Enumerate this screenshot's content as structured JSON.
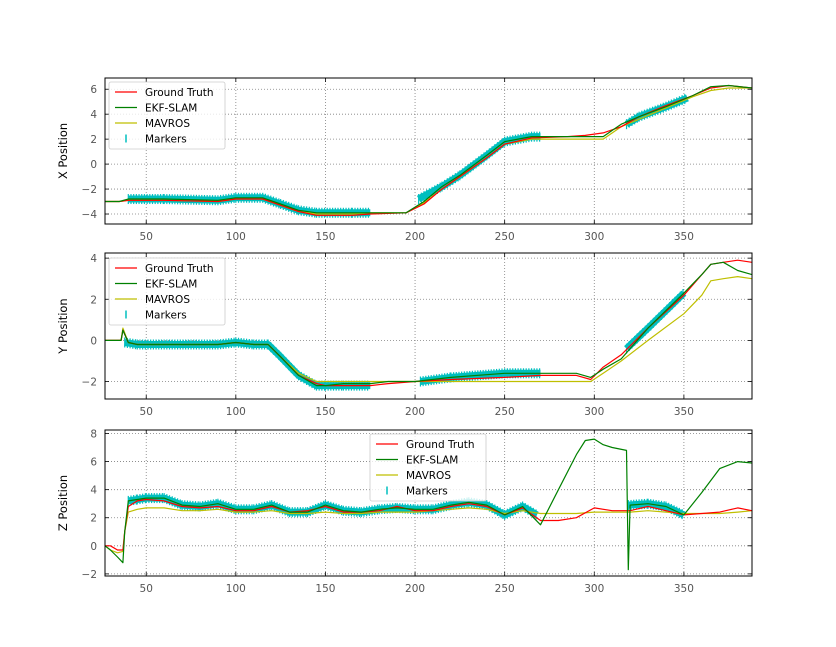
{
  "colors": {
    "ground_truth": "#ff0000",
    "ekf_slam": "#008000",
    "mavros": "#bfbf00",
    "markers": "#00bfbf",
    "grid": "#7f7f7f",
    "axis": "#000000"
  },
  "legend_labels": {
    "ground_truth": "Ground Truth",
    "ekf_slam": "EKF-SLAM",
    "mavros": "MAVROS",
    "markers": "Markers"
  },
  "chart_data": [
    {
      "type": "line",
      "title": "",
      "xlabel": "",
      "ylabel": "X Position",
      "xlim": [
        27,
        388
      ],
      "ylim": [
        -4.8,
        6.9
      ],
      "xticks": [
        "50",
        "100",
        "150",
        "200",
        "250",
        "300",
        "350"
      ],
      "yticks": [
        "−4",
        "−2",
        "0",
        "2",
        "4",
        "6"
      ],
      "grid": true,
      "legend_position": "upper-left",
      "series": [
        {
          "name": "Ground Truth",
          "x": [
            27,
            35,
            40,
            60,
            90,
            100,
            115,
            125,
            135,
            145,
            165,
            175,
            195,
            205,
            215,
            225,
            240,
            250,
            265,
            285,
            295,
            305,
            315,
            325,
            340,
            355,
            365,
            375,
            388
          ],
          "y": [
            -3,
            -3,
            -2.9,
            -2.9,
            -3,
            -2.8,
            -2.8,
            -3.3,
            -3.8,
            -4.1,
            -4.1,
            -4,
            -3.9,
            -3.2,
            -2,
            -1,
            0.5,
            1.6,
            2.1,
            2.2,
            2.3,
            2.5,
            3,
            3.8,
            4.7,
            5.5,
            6.1,
            6.3,
            6.1
          ]
        },
        {
          "name": "EKF-SLAM",
          "x": [
            27,
            35,
            40,
            60,
            90,
            100,
            115,
            125,
            135,
            145,
            165,
            175,
            195,
            205,
            215,
            225,
            240,
            250,
            265,
            285,
            295,
            305,
            315,
            325,
            340,
            355,
            365,
            375,
            388
          ],
          "y": [
            -3,
            -3,
            -2.8,
            -2.8,
            -2.9,
            -2.7,
            -2.7,
            -3.2,
            -3.7,
            -3.9,
            -3.9,
            -3.9,
            -3.9,
            -3,
            -1.8,
            -0.9,
            0.7,
            1.8,
            2.2,
            2.2,
            2.2,
            2.2,
            3.2,
            3.8,
            4.6,
            5.5,
            6.2,
            6.3,
            6.1
          ]
        },
        {
          "name": "MAVROS",
          "x": [
            27,
            35,
            40,
            60,
            90,
            100,
            115,
            125,
            135,
            145,
            165,
            175,
            195,
            205,
            215,
            225,
            240,
            250,
            265,
            285,
            295,
            305,
            315,
            325,
            340,
            355,
            365,
            375,
            388
          ],
          "y": [
            -3,
            -3,
            -2.9,
            -2.9,
            -3,
            -2.8,
            -2.8,
            -3.3,
            -3.8,
            -4,
            -4,
            -3.9,
            -3.9,
            -3.1,
            -2,
            -1,
            0.5,
            1.6,
            2,
            2,
            2,
            2,
            3,
            3.6,
            4.5,
            5.4,
            5.9,
            6.1,
            6.1
          ]
        },
        {
          "name": "Markers",
          "segments": [
            {
              "x": [
                40,
                60,
                90,
                100,
                115,
                125,
                135,
                145,
                165,
                175
              ],
              "y": [
                -2.8,
                -2.8,
                -2.9,
                -2.7,
                -2.7,
                -3.2,
                -3.7,
                -3.9,
                -3.9,
                -3.9
              ]
            },
            {
              "x": [
                202,
                215,
                225,
                240,
                250,
                265,
                270
              ],
              "y": [
                -2.8,
                -1.8,
                -0.9,
                0.7,
                1.8,
                2.2,
                2.2
              ]
            },
            {
              "x": [
                318,
                325,
                340,
                352
              ],
              "y": [
                3.2,
                3.8,
                4.6,
                5.3
              ]
            }
          ]
        }
      ]
    },
    {
      "type": "line",
      "title": "",
      "xlabel": "",
      "ylabel": "Y Position",
      "xlim": [
        27,
        388
      ],
      "ylim": [
        -2.85,
        4.25
      ],
      "xticks": [
        "50",
        "100",
        "150",
        "200",
        "250",
        "300",
        "350"
      ],
      "yticks": [
        "−2",
        "0",
        "2",
        "4"
      ],
      "grid": true,
      "legend_position": "upper-left",
      "series": [
        {
          "name": "Ground Truth",
          "x": [
            27,
            36,
            37,
            40,
            45,
            60,
            90,
            100,
            110,
            118,
            125,
            135,
            145,
            150,
            160,
            175,
            185,
            200,
            220,
            250,
            270,
            290,
            298,
            305,
            315,
            330,
            350,
            360,
            365,
            372,
            380,
            388
          ],
          "y": [
            0,
            0,
            0.5,
            -0.1,
            -0.2,
            -0.2,
            -0.2,
            -0.1,
            -0.2,
            -0.2,
            -0.8,
            -1.7,
            -2.1,
            -2.2,
            -2.2,
            -2.2,
            -2.1,
            -2,
            -1.9,
            -1.8,
            -1.7,
            -1.7,
            -1.9,
            -1.3,
            -0.7,
            0.6,
            2.2,
            3.2,
            3.7,
            3.8,
            3.9,
            3.8
          ]
        },
        {
          "name": "EKF-SLAM",
          "x": [
            27,
            36,
            37,
            40,
            45,
            60,
            90,
            100,
            110,
            118,
            125,
            135,
            145,
            150,
            160,
            175,
            185,
            200,
            220,
            250,
            270,
            290,
            298,
            305,
            315,
            330,
            350,
            360,
            365,
            372,
            380,
            388
          ],
          "y": [
            0,
            0,
            0.5,
            -0.1,
            -0.2,
            -0.2,
            -0.2,
            -0.1,
            -0.2,
            -0.2,
            -0.8,
            -1.7,
            -2.2,
            -2.2,
            -2.1,
            -2.1,
            -2,
            -2,
            -1.8,
            -1.6,
            -1.6,
            -1.6,
            -1.8,
            -1.4,
            -0.9,
            0.6,
            2.3,
            3.2,
            3.7,
            3.8,
            3.4,
            3.2
          ]
        },
        {
          "name": "MAVROS",
          "x": [
            27,
            36,
            37,
            40,
            45,
            60,
            90,
            100,
            110,
            118,
            125,
            135,
            145,
            150,
            160,
            175,
            185,
            200,
            220,
            250,
            270,
            290,
            298,
            305,
            315,
            330,
            350,
            360,
            365,
            372,
            380,
            388
          ],
          "y": [
            0,
            0,
            0.6,
            -0.1,
            -0.2,
            -0.2,
            -0.2,
            -0.1,
            -0.2,
            -0.2,
            -0.8,
            -1.6,
            -2,
            -2,
            -2,
            -2,
            -2,
            -2,
            -2,
            -2,
            -2,
            -2,
            -2,
            -1.6,
            -1,
            0,
            1.3,
            2.2,
            2.9,
            3,
            3.1,
            3
          ]
        },
        {
          "name": "Markers",
          "segments": [
            {
              "x": [
                38,
                45,
                60,
                90,
                100,
                110,
                118,
                125,
                135,
                145,
                150,
                160,
                175
              ],
              "y": [
                -0.1,
                -0.2,
                -0.2,
                -0.2,
                -0.1,
                -0.2,
                -0.2,
                -0.8,
                -1.7,
                -2.2,
                -2.2,
                -2.2,
                -2.2
              ]
            },
            {
              "x": [
                203,
                220,
                250,
                270
              ],
              "y": [
                -2,
                -1.8,
                -1.6,
                -1.6
              ]
            },
            {
              "x": [
                318,
                330,
                350
              ],
              "y": [
                -0.4,
                0.6,
                2.3
              ]
            }
          ]
        }
      ]
    },
    {
      "type": "line",
      "title": "",
      "xlabel": "",
      "ylabel": "Z Position",
      "xlim": [
        27,
        388
      ],
      "ylim": [
        -2.15,
        8.25
      ],
      "xticks": [
        "50",
        "100",
        "150",
        "200",
        "250",
        "300",
        "350"
      ],
      "yticks": [
        "−2",
        "0",
        "2",
        "4",
        "6",
        "8"
      ],
      "grid": true,
      "legend_position": "upper-center",
      "series": [
        {
          "name": "Ground Truth",
          "x": [
            27,
            30,
            34,
            37,
            38,
            40,
            45,
            50,
            60,
            70,
            80,
            90,
            100,
            110,
            120,
            130,
            140,
            150,
            160,
            170,
            180,
            190,
            200,
            210,
            220,
            230,
            240,
            250,
            260,
            270,
            280,
            290,
            300,
            310,
            320,
            330,
            340,
            350,
            360,
            370,
            380,
            388
          ],
          "y": [
            0,
            0,
            -0.3,
            -0.3,
            1,
            2.8,
            3.2,
            3.3,
            3.2,
            2.8,
            2.7,
            2.8,
            2.5,
            2.5,
            2.8,
            2.4,
            2.5,
            2.8,
            2.4,
            2.4,
            2.5,
            2.8,
            2.5,
            2.5,
            2.8,
            3,
            2.8,
            2.2,
            2.7,
            1.8,
            1.8,
            2,
            2.7,
            2.5,
            2.5,
            2.8,
            2.5,
            2.2,
            2.3,
            2.4,
            2.7,
            2.5
          ]
        },
        {
          "name": "EKF-SLAM",
          "x": [
            27,
            30,
            34,
            37,
            38,
            40,
            45,
            50,
            60,
            70,
            80,
            90,
            100,
            110,
            120,
            130,
            140,
            150,
            160,
            170,
            180,
            190,
            200,
            210,
            220,
            230,
            240,
            250,
            260,
            270,
            280,
            290,
            295,
            300,
            305,
            310,
            318,
            319,
            320,
            330,
            340,
            350,
            360,
            370,
            380,
            388
          ],
          "y": [
            0,
            -0.3,
            -0.8,
            -1.2,
            1,
            3.2,
            3.3,
            3.4,
            3.4,
            2.9,
            2.8,
            3,
            2.6,
            2.6,
            2.9,
            2.4,
            2.4,
            2.9,
            2.5,
            2.4,
            2.6,
            2.7,
            2.6,
            2.6,
            2.9,
            3.1,
            2.9,
            2.2,
            2.8,
            1.5,
            4,
            6.5,
            7.5,
            7.6,
            7.2,
            7,
            6.8,
            -1.7,
            2.9,
            3,
            2.8,
            2.2,
            3.8,
            5.5,
            6,
            5.9
          ]
        },
        {
          "name": "MAVROS",
          "x": [
            27,
            30,
            34,
            37,
            38,
            40,
            45,
            50,
            60,
            70,
            80,
            90,
            100,
            110,
            120,
            130,
            140,
            150,
            160,
            170,
            180,
            190,
            200,
            210,
            220,
            230,
            240,
            250,
            260,
            270,
            280,
            290,
            300,
            310,
            320,
            330,
            340,
            350,
            360,
            370,
            380,
            388
          ],
          "y": [
            0,
            -0.3,
            -0.5,
            -0.4,
            1,
            2.4,
            2.6,
            2.7,
            2.7,
            2.5,
            2.5,
            2.6,
            2.4,
            2.4,
            2.5,
            2.3,
            2.3,
            2.4,
            2.3,
            2.3,
            2.4,
            2.4,
            2.4,
            2.5,
            2.6,
            2.7,
            2.6,
            2.3,
            2.5,
            2.3,
            2.3,
            2.3,
            2.4,
            2.4,
            2.4,
            2.5,
            2.4,
            2.3,
            2.3,
            2.3,
            2.4,
            2.5
          ]
        },
        {
          "name": "Markers",
          "segments": [
            {
              "x": [
                40,
                45,
                50,
                60,
                70,
                80,
                90,
                100,
                110,
                120,
                130,
                140,
                150,
                160,
                170,
                180,
                190,
                200,
                210,
                220,
                230,
                240,
                250,
                260,
                268
              ],
              "y": [
                3.2,
                3.3,
                3.4,
                3.4,
                2.9,
                2.8,
                3,
                2.6,
                2.6,
                2.9,
                2.4,
                2.4,
                2.9,
                2.5,
                2.4,
                2.6,
                2.7,
                2.6,
                2.6,
                2.9,
                3.1,
                2.9,
                2.2,
                2.8,
                2.2
              ]
            },
            {
              "x": [
                319,
                330,
                340,
                350
              ],
              "y": [
                2.9,
                3,
                2.8,
                2.2
              ]
            }
          ]
        }
      ]
    }
  ]
}
